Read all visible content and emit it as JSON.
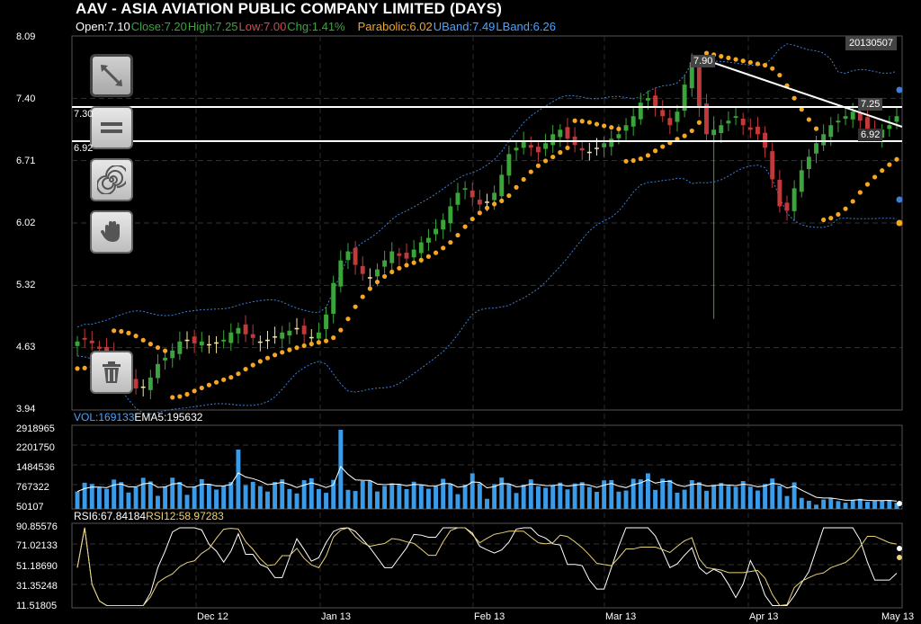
{
  "header": {
    "title": "AAV - ASIA AVIATION PUBLIC COMPANY LIMITED (DAYS)",
    "open": "Open:7.10",
    "close": "Close:7.20",
    "high": "High:7.25",
    "low": "Low:7.00",
    "chg": "Chg:1.41%",
    "parabolic": "Parabolic:6.02",
    "uband": "UBand:7.49",
    "lband": "LBand:6.26"
  },
  "date_box": "20130507",
  "tools": {
    "trendline": "trendline-tool-icon",
    "horizontal": "horizontal-line-tool-icon",
    "fibonacci": "fibonacci-spiral-tool-icon",
    "pan": "hand-pan-tool-icon",
    "delete": "trash-icon"
  },
  "annotations": {
    "hline_upper": "7.30",
    "hline_lower": "6.92",
    "trend_start": "7.90",
    "trend_end_label": "7.25",
    "price_label": "6.92"
  },
  "volume_header": {
    "vol": "VOL:169133",
    "ema": "EMA5:195632"
  },
  "rsi_header": {
    "rsi6": "RSI6:67.84184",
    "rsi12": "RSI12:58.97283"
  },
  "colors": {
    "up": "#3aa53a",
    "down": "#c0393b",
    "doji": "#f5e79e",
    "parabolic": "#f5a623",
    "band": "#3d7fd6",
    "volume": "#3a9be8",
    "rsi6": "#ffffff",
    "rsi12": "#e8d27a",
    "info_blue": "#4aa3ff"
  },
  "chart_data": [
    {
      "type": "candlestick",
      "title": "AAV - ASIA AVIATION PUBLIC COMPANY LIMITED (DAYS)",
      "y_ticks": [
        "8.09",
        "7.40",
        "6.71",
        "6.02",
        "5.32",
        "4.63",
        "3.94"
      ],
      "ylim": [
        3.94,
        8.09
      ],
      "x_ticks": [
        "Dec 12",
        "Jan 13",
        "Feb 13",
        "Mar 13",
        "Apr 13",
        "May 13"
      ],
      "grid": true,
      "horizontal_lines": [
        7.3,
        6.92
      ],
      "trendline": {
        "from": 7.9,
        "to": 7.25
      },
      "closes": [
        4.7,
        4.72,
        4.68,
        4.62,
        4.55,
        4.45,
        4.35,
        4.25,
        4.18,
        4.2,
        4.3,
        4.45,
        4.52,
        4.6,
        4.7,
        4.72,
        4.68,
        4.7,
        4.66,
        4.68,
        4.72,
        4.8,
        4.85,
        4.78,
        4.74,
        4.7,
        4.72,
        4.75,
        4.8,
        4.82,
        4.85,
        4.78,
        4.75,
        4.8,
        5.0,
        5.35,
        5.6,
        5.7,
        5.55,
        5.45,
        5.4,
        5.5,
        5.6,
        5.7,
        5.65,
        5.62,
        5.72,
        5.8,
        5.85,
        5.95,
        6.05,
        6.2,
        6.35,
        6.4,
        6.3,
        6.22,
        6.25,
        6.35,
        6.55,
        6.78,
        6.85,
        6.92,
        6.85,
        6.8,
        6.9,
        7.0,
        7.05,
        6.95,
        6.88,
        6.82,
        6.8,
        6.85,
        6.9,
        6.95,
        7.0,
        7.1,
        7.2,
        7.35,
        7.4,
        7.3,
        7.2,
        7.1,
        7.25,
        7.55,
        7.8,
        7.3,
        7.0,
        7.05,
        7.1,
        7.15,
        7.2,
        7.1,
        7.05,
        7.0,
        6.85,
        6.5,
        6.2,
        6.15,
        6.4,
        6.6,
        6.75,
        6.9,
        7.0,
        7.1,
        7.15,
        7.2,
        7.25,
        7.15,
        7.05,
        7.0,
        7.05,
        7.1,
        7.2
      ]
    },
    {
      "type": "bar",
      "name": "VOL",
      "y_ticks": [
        "2918965",
        "2201750",
        "1484536",
        "767322",
        "50107"
      ],
      "ylim": [
        50107,
        2918965
      ]
    },
    {
      "type": "line",
      "y_ticks": [
        "90.85576",
        "71.02133",
        "51.18690",
        "31.35248",
        "11.51805"
      ],
      "ylim": [
        11.51805,
        90.85576
      ]
    }
  ]
}
